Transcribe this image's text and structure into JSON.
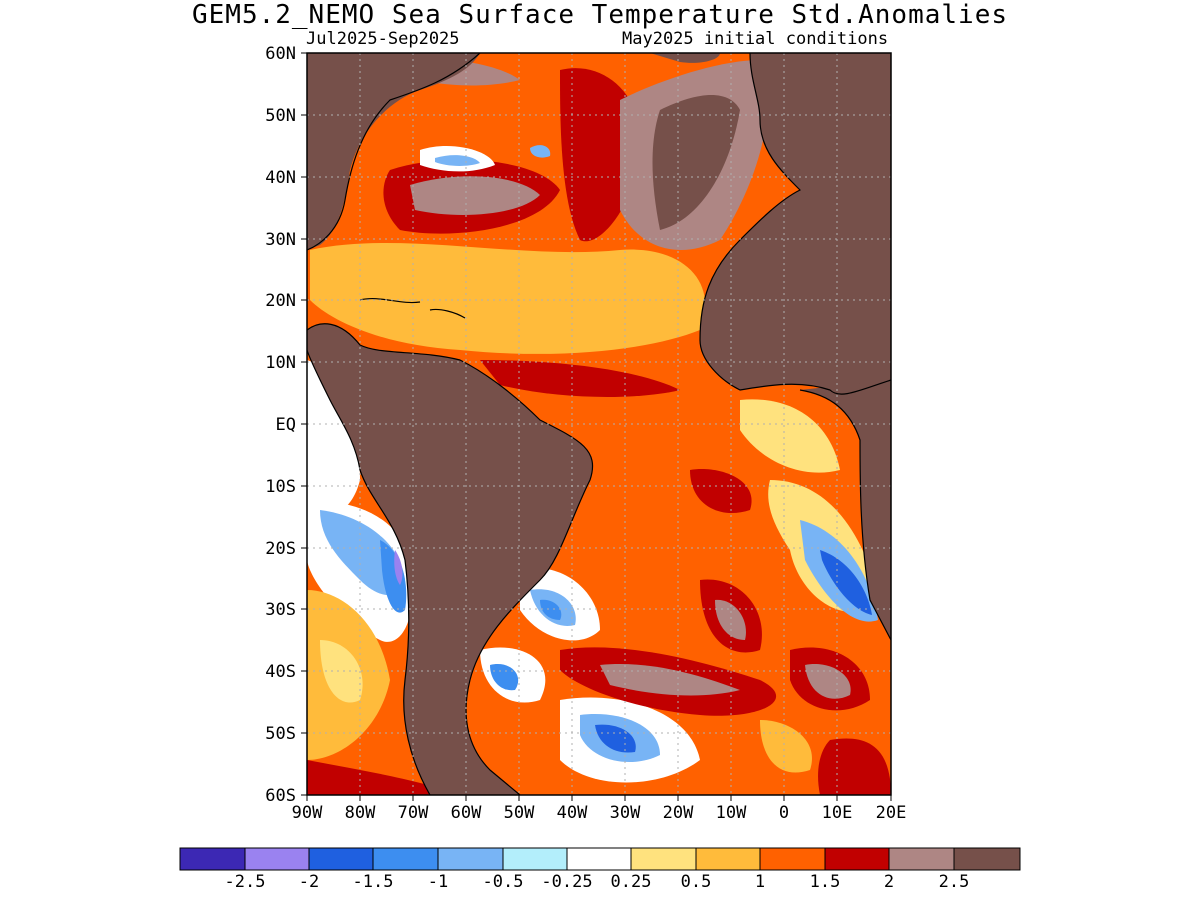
{
  "title": "GEM5.2_NEMO Sea Surface Temperature Std.Anomalies",
  "subtitle_left": "Jul2025-Sep2025",
  "subtitle_right": "May2025 initial conditions",
  "latitude_labels": [
    "60N",
    "50N",
    "40N",
    "30N",
    "20N",
    "10N",
    "EQ",
    "10S",
    "20S",
    "30S",
    "40S",
    "50S",
    "60S"
  ],
  "longitude_labels": [
    "90W",
    "80W",
    "70W",
    "60W",
    "50W",
    "40W",
    "30W",
    "20W",
    "10W",
    "0",
    "10E",
    "20E"
  ],
  "land_color": "#76504a",
  "colorbar": {
    "colors": [
      "#3c28b4",
      "#9a82f0",
      "#1f60e0",
      "#3d8ef0",
      "#78b4f5",
      "#b3eefb",
      "#ffffff",
      "#ffe27e",
      "#ffbb3b",
      "#ff6100",
      "#c10000",
      "#ae8684",
      "#76504a"
    ],
    "labels": [
      "-2.5",
      "-2",
      "-1.5",
      "-1",
      "-0.5",
      "-0.25",
      "0.25",
      "0.5",
      "1",
      "1.5",
      "2",
      "2.5"
    ]
  }
}
